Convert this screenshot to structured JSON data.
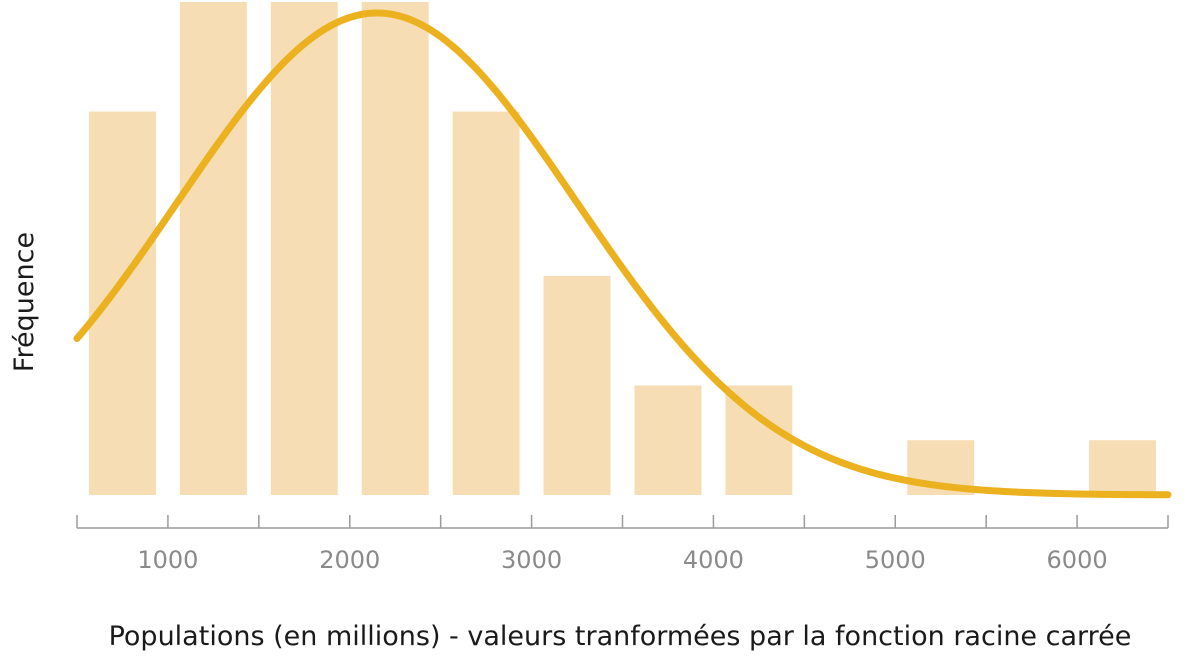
{
  "chart_data": {
    "type": "bar",
    "title": "",
    "xlabel": "Populations (en millions) - valeurs tranformées par la fonction racine carrée",
    "ylabel": "Fréquence",
    "bin_width": 500,
    "x_bins": [
      500,
      1000,
      1500,
      2000,
      2500,
      3000,
      3500,
      4000,
      4500,
      5000,
      5500,
      6000
    ],
    "values": [
      7,
      9,
      9,
      9,
      7,
      4,
      2,
      2,
      0,
      1,
      0,
      1
    ],
    "xlim": [
      500,
      6500
    ],
    "ylim": [
      0,
      9
    ],
    "xticks": [
      500,
      1000,
      1500,
      2000,
      2500,
      3000,
      3500,
      4000,
      4500,
      5000,
      5500,
      6000,
      6500
    ],
    "xtick_labels": [
      "1000",
      "2000",
      "3000",
      "4000",
      "5000",
      "6000"
    ],
    "xtick_label_values": [
      1000,
      2000,
      3000,
      4000,
      5000,
      6000
    ],
    "curve": {
      "type": "normal-density",
      "x_start": 500,
      "x_end": 6500,
      "mean": 2150,
      "sd": 1100,
      "peak": 8.8
    },
    "grid": false,
    "legend": "none",
    "colors": {
      "bars": "#f6ddb3",
      "curve": "#ecb11f",
      "axis": "#9a9a9a",
      "ticks": "#8a8a8a",
      "text": "#1a1a1a"
    }
  }
}
